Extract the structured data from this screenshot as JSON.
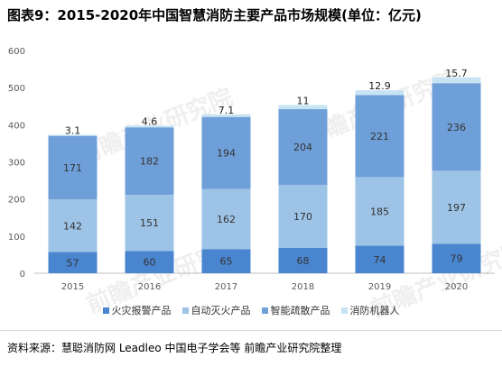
{
  "title": "图表9：2015-2020年中国智慧消防主要产品市场规模(单位：亿元)",
  "source": "资料来源：慧聪消防网 Leadleo 中国电子学会等 前瞻产业研究院整理",
  "watermark": "前瞻产业研究院",
  "colors": {
    "s0": "#4a86d0",
    "s1": "#9dc3e6",
    "s2": "#6f9fd8",
    "s3": "#c6e4f4",
    "axis": "#bfbfbf",
    "grid": "#e6e6e6",
    "tick": "#595959",
    "label": "#333333"
  },
  "chart_data": {
    "type": "bar",
    "stacked": true,
    "title": "图表9：2015-2020年中国智慧消防主要产品市场规模(单位：亿元)",
    "categories": [
      "2015",
      "2016",
      "2017",
      "2018",
      "2019",
      "2020"
    ],
    "series": [
      {
        "name": "火灾报警产品",
        "values": [
          57,
          60,
          65,
          68,
          74,
          79
        ]
      },
      {
        "name": "自动灭火产品",
        "values": [
          142,
          151,
          162,
          170,
          185,
          197
        ]
      },
      {
        "name": "智能疏散产品",
        "values": [
          171,
          182,
          194,
          204,
          221,
          236
        ]
      },
      {
        "name": "消防机器人",
        "values": [
          3.1,
          4.6,
          7.1,
          11,
          12.9,
          15.7
        ]
      }
    ],
    "ylim": [
      0,
      600
    ],
    "yticks": [
      0,
      100,
      200,
      300,
      400,
      500,
      600
    ],
    "grid": false,
    "legend_position": "bottom"
  }
}
